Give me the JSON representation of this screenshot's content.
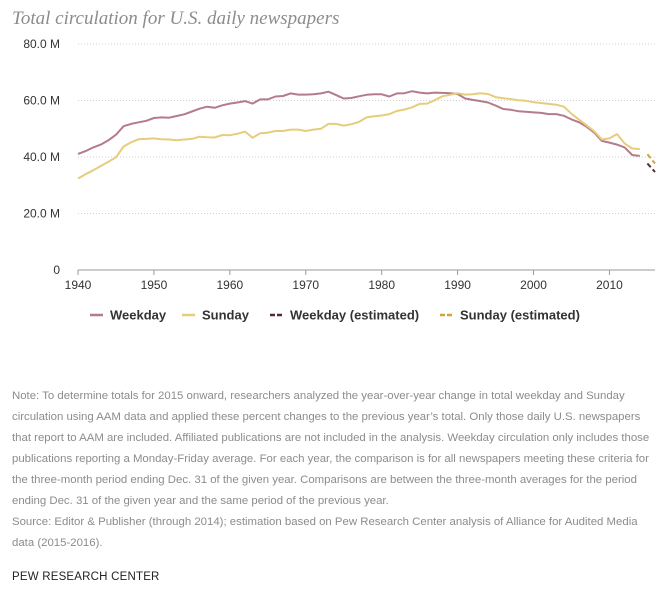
{
  "chart_data": {
    "type": "line",
    "title": "Total circulation for U.S. daily newspapers",
    "xlabel": "",
    "ylabel": "",
    "xlim": [
      1940,
      2016
    ],
    "ylim": [
      0,
      80
    ],
    "x_ticks": [
      1940,
      1950,
      1960,
      1970,
      1980,
      1990,
      2000,
      2010
    ],
    "y_ticks": [
      0,
      20,
      40,
      60,
      80
    ],
    "y_tick_labels": [
      "0",
      "20.0 M",
      "40.0 M",
      "60.0 M",
      "80.0 M"
    ],
    "grid": "horizontal dotted",
    "legend_position": "bottom",
    "colors": {
      "weekday": "#b47b8d",
      "sunday": "#e6cd7c",
      "weekday_estimated": "#5a2a32",
      "sunday_estimated": "#d1a43b"
    },
    "series": [
      {
        "name": "Weekday",
        "key": "weekday",
        "dashed": false,
        "x": [
          1940,
          1941,
          1942,
          1943,
          1944,
          1945,
          1946,
          1947,
          1948,
          1949,
          1950,
          1951,
          1952,
          1953,
          1954,
          1955,
          1956,
          1957,
          1958,
          1959,
          1960,
          1961,
          1962,
          1963,
          1964,
          1965,
          1966,
          1967,
          1968,
          1969,
          1970,
          1971,
          1972,
          1973,
          1974,
          1975,
          1976,
          1977,
          1978,
          1979,
          1980,
          1981,
          1982,
          1983,
          1984,
          1985,
          1986,
          1987,
          1988,
          1989,
          1990,
          1991,
          1992,
          1993,
          1994,
          1995,
          1996,
          1997,
          1998,
          1999,
          2000,
          2001,
          2002,
          2003,
          2004,
          2005,
          2006,
          2007,
          2008,
          2009,
          2010,
          2011,
          2012,
          2013,
          2014
        ],
        "values": [
          41.1,
          42.1,
          43.4,
          44.4,
          45.9,
          47.9,
          50.9,
          51.7,
          52.3,
          52.8,
          53.8,
          54.0,
          53.9,
          54.5,
          55.1,
          56.1,
          57.1,
          57.8,
          57.4,
          58.3,
          58.9,
          59.3,
          59.8,
          58.9,
          60.4,
          60.4,
          61.4,
          61.6,
          62.5,
          62.1,
          62.1,
          62.2,
          62.5,
          63.1,
          61.9,
          60.7,
          60.9,
          61.5,
          62.0,
          62.2,
          62.2,
          61.4,
          62.5,
          62.6,
          63.3,
          62.8,
          62.5,
          62.8,
          62.7,
          62.6,
          62.3,
          60.7,
          60.2,
          59.8,
          59.3,
          58.2,
          57.0,
          56.7,
          56.2,
          56.0,
          55.8,
          55.6,
          55.2,
          55.2,
          54.6,
          53.3,
          52.3,
          50.7,
          48.6,
          45.7,
          45.1,
          44.4,
          43.4,
          40.7,
          40.4
        ]
      },
      {
        "name": "Sunday",
        "key": "sunday",
        "dashed": false,
        "x": [
          1940,
          1941,
          1942,
          1943,
          1944,
          1945,
          1946,
          1947,
          1948,
          1949,
          1950,
          1951,
          1952,
          1953,
          1954,
          1955,
          1956,
          1957,
          1958,
          1959,
          1960,
          1961,
          1962,
          1963,
          1964,
          1965,
          1966,
          1967,
          1968,
          1969,
          1970,
          1971,
          1972,
          1973,
          1974,
          1975,
          1976,
          1977,
          1978,
          1979,
          1980,
          1981,
          1982,
          1983,
          1984,
          1985,
          1986,
          1987,
          1988,
          1989,
          1990,
          1991,
          1992,
          1993,
          1994,
          1995,
          1996,
          1997,
          1998,
          1999,
          2000,
          2001,
          2002,
          2003,
          2004,
          2005,
          2006,
          2007,
          2008,
          2009,
          2010,
          2011,
          2012,
          2013,
          2014
        ],
        "values": [
          32.4,
          33.9,
          35.3,
          36.8,
          38.3,
          39.9,
          43.7,
          45.2,
          46.3,
          46.4,
          46.6,
          46.3,
          46.2,
          45.9,
          46.2,
          46.4,
          47.2,
          47.0,
          46.9,
          47.8,
          47.7,
          48.2,
          49.0,
          46.8,
          48.4,
          48.6,
          49.2,
          49.2,
          49.7,
          49.7,
          49.2,
          49.7,
          50.0,
          51.7,
          51.7,
          51.1,
          51.6,
          52.4,
          54.0,
          54.4,
          54.7,
          55.2,
          56.3,
          56.8,
          57.6,
          58.8,
          58.9,
          60.1,
          61.5,
          62.0,
          62.6,
          62.1,
          62.2,
          62.6,
          62.3,
          61.2,
          60.8,
          60.5,
          60.1,
          59.9,
          59.4,
          59.1,
          58.8,
          58.5,
          57.8,
          55.3,
          53.2,
          51.2,
          49.1,
          46.2,
          46.6,
          48.1,
          44.8,
          43.0,
          42.8
        ]
      },
      {
        "name": "Weekday (estimated)",
        "key": "weekday_estimated",
        "dashed": true,
        "x": [
          2015,
          2016
        ],
        "values": [
          37.7,
          34.7
        ]
      },
      {
        "name": "Sunday (estimated)",
        "key": "sunday_estimated",
        "dashed": true,
        "x": [
          2015,
          2016
        ],
        "values": [
          41.0,
          37.7
        ]
      }
    ],
    "note": "Note: To determine totals for 2015 onward, researchers analyzed the year-over-year change in total weekday and Sunday circulation using AAM data and applied these percent changes to the previous year’s total. Only those daily U.S. newspapers that report to AAM are included. Affiliated publications are not included in the analysis. Weekday circulation only includes those publications reporting a Monday-Friday average. For each year, the comparison is for all newspapers meeting these criteria for the three-month period ending Dec. 31 of the given year. Comparisons are between the three-month averages for the period ending Dec. 31 of the given year and the same period of the previous year.",
    "source": "Source: Editor & Publisher (through 2014); estimation based on Pew Research Center analysis of Alliance for Audited Media data (2015-2016).",
    "brand": "PEW RESEARCH CENTER"
  }
}
